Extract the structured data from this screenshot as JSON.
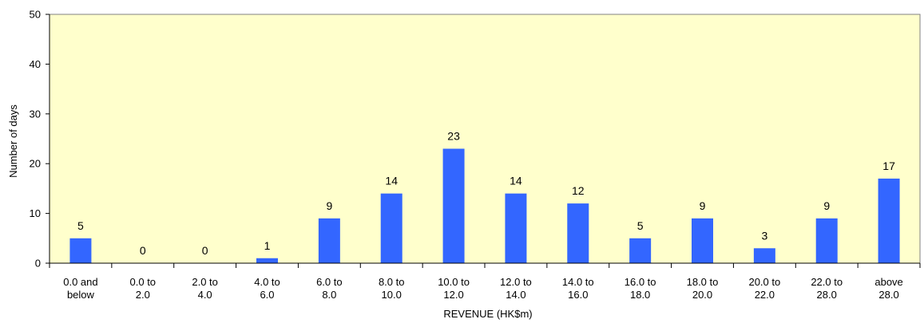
{
  "chart_data": {
    "type": "bar",
    "title": "",
    "xlabel": "REVENUE (HK$m)",
    "ylabel": "Number of days",
    "ylim": [
      0,
      50
    ],
    "yticks": [
      0,
      10,
      20,
      30,
      40,
      50
    ],
    "grid": false,
    "legend": "none",
    "categories": [
      [
        "0.0 and",
        "below"
      ],
      [
        "0.0 to",
        "2.0"
      ],
      [
        "2.0 to",
        "4.0"
      ],
      [
        "4.0 to",
        "6.0"
      ],
      [
        "6.0 to",
        "8.0"
      ],
      [
        "8.0 to",
        "10.0"
      ],
      [
        "10.0 to",
        "12.0"
      ],
      [
        "12.0 to",
        "14.0"
      ],
      [
        "14.0 to",
        "16.0"
      ],
      [
        "16.0 to",
        "18.0"
      ],
      [
        "18.0 to",
        "20.0"
      ],
      [
        "20.0 to",
        "22.0"
      ],
      [
        "22.0 to",
        "28.0"
      ],
      [
        "above",
        "28.0"
      ]
    ],
    "values": [
      5,
      0,
      0,
      1,
      9,
      14,
      23,
      14,
      12,
      5,
      9,
      3,
      9,
      17
    ],
    "colors": {
      "bar": "#3366ff",
      "plot_background": "#ffffcc",
      "axis": "#000000"
    }
  }
}
